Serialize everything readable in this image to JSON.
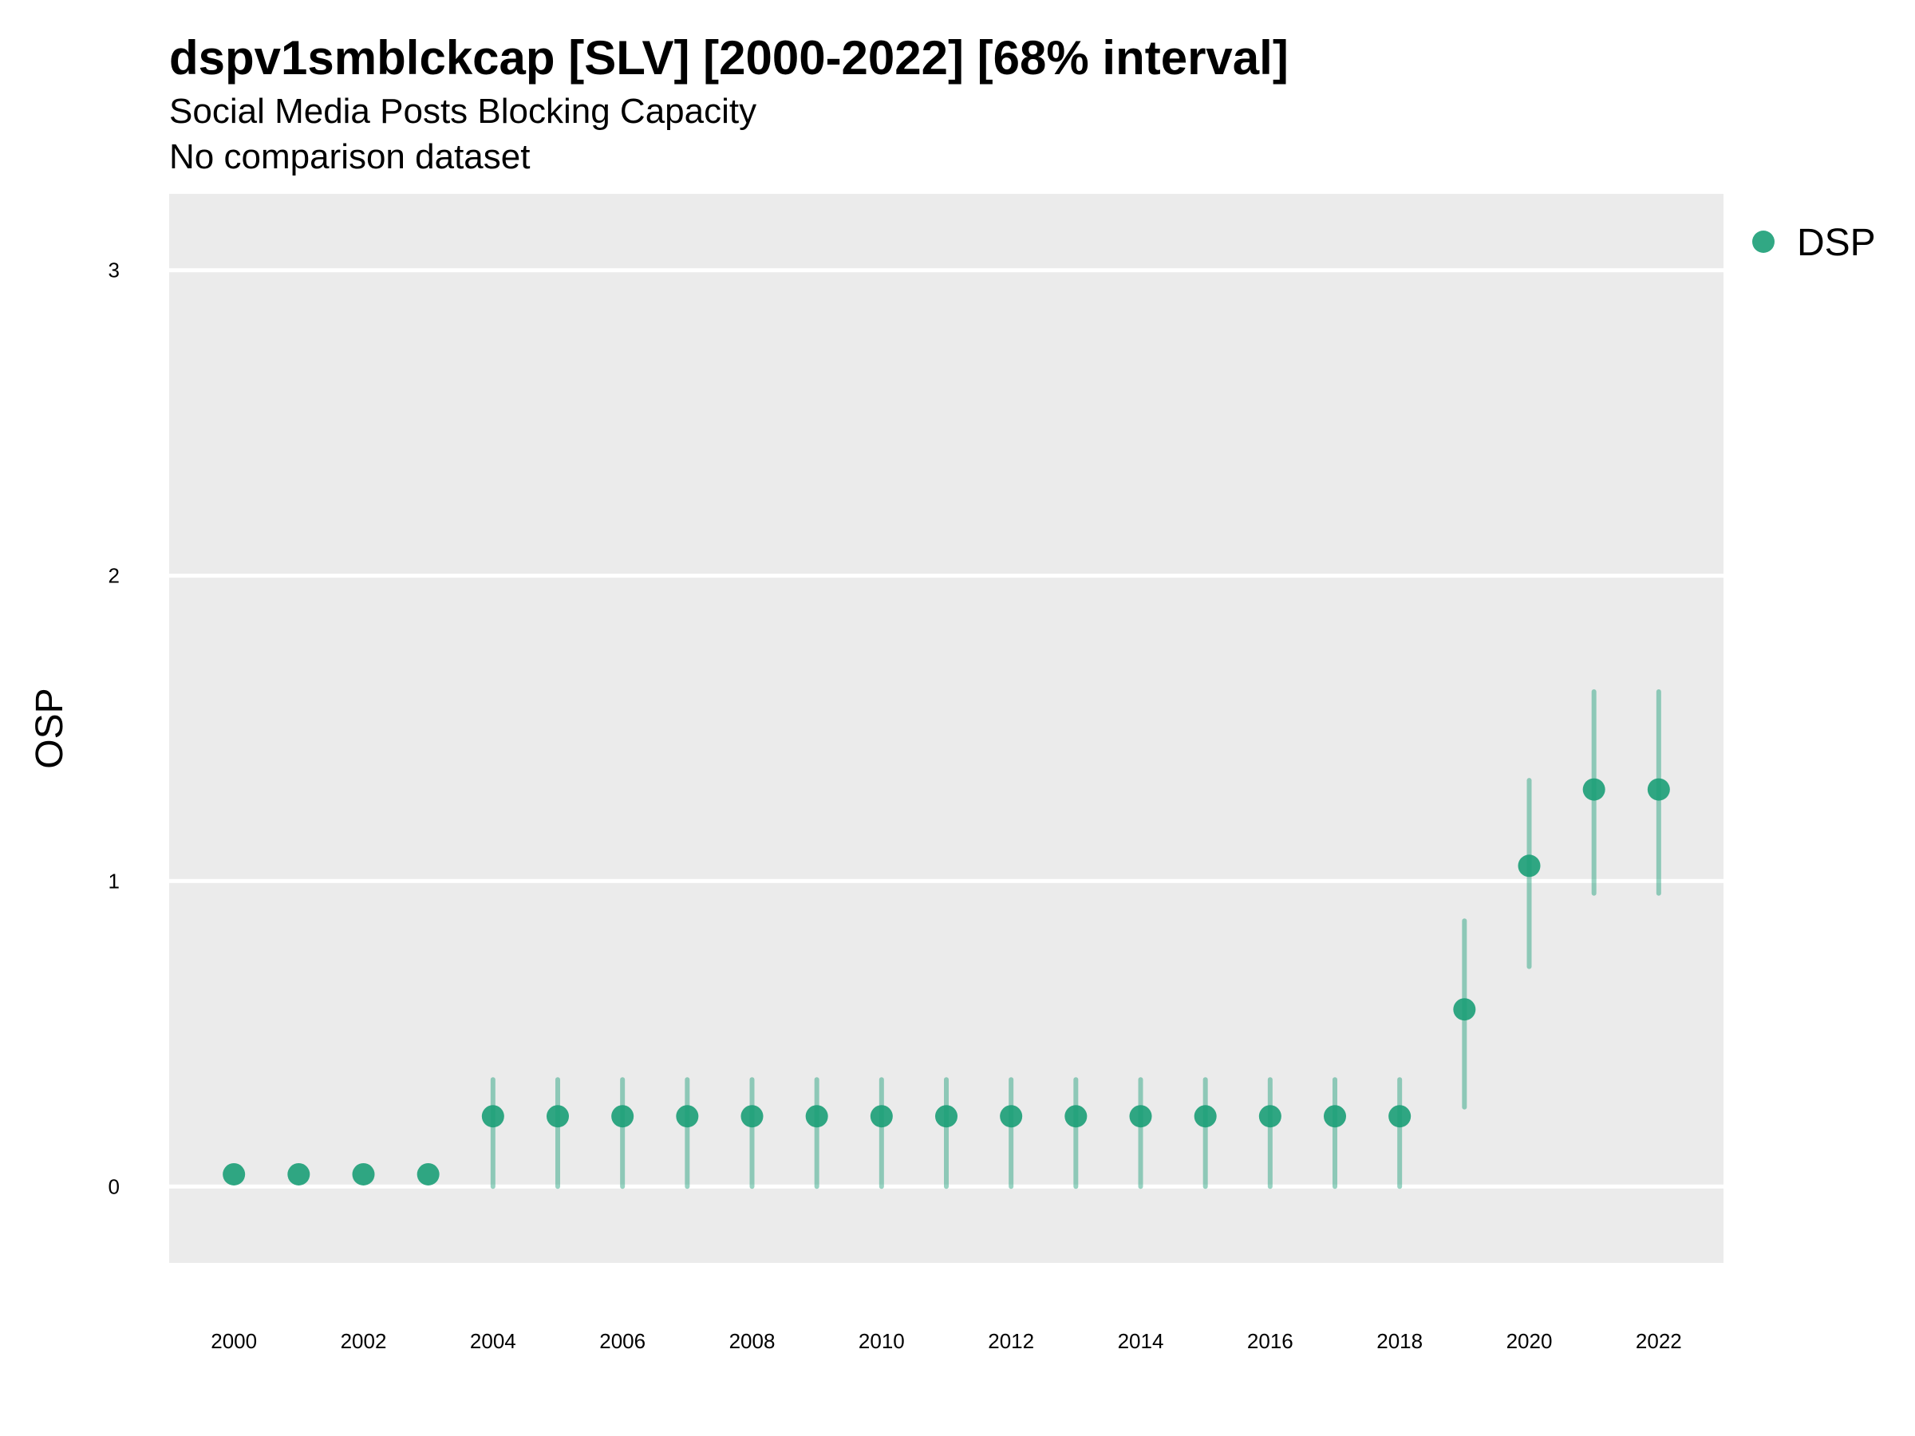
{
  "title": "dspv1smblckcap [SLV] [2000-2022] [68% interval]",
  "subtitle": "Social Media Posts Blocking Capacity",
  "caption": "No comparison dataset",
  "colors": {
    "panel_background": "#EBEBEB",
    "gridline": "#FFFFFF",
    "series": "#1B9E77"
  },
  "chart_data": {
    "type": "scatter",
    "ylabel": "OSP",
    "xlabel": "",
    "ylim": [
      -0.25,
      3.25
    ],
    "xlim": [
      1999,
      2023
    ],
    "yticks": [
      0,
      1,
      2,
      3
    ],
    "xticks": [
      2000,
      2002,
      2004,
      2006,
      2008,
      2010,
      2012,
      2014,
      2016,
      2018,
      2020,
      2022
    ],
    "grid": true,
    "legend_position": "right",
    "series": [
      {
        "name": "DSP",
        "x": [
          2000,
          2001,
          2002,
          2003,
          2004,
          2005,
          2006,
          2007,
          2008,
          2009,
          2010,
          2011,
          2012,
          2013,
          2014,
          2015,
          2016,
          2017,
          2018,
          2019,
          2020,
          2021,
          2022
        ],
        "y": [
          0.04,
          0.04,
          0.04,
          0.04,
          0.23,
          0.23,
          0.23,
          0.23,
          0.23,
          0.23,
          0.23,
          0.23,
          0.23,
          0.23,
          0.23,
          0.23,
          0.23,
          0.23,
          0.23,
          0.58,
          1.05,
          1.3,
          1.3
        ],
        "lower": [
          0.04,
          0.04,
          0.04,
          0.04,
          0.0,
          0.0,
          0.0,
          0.0,
          0.0,
          0.0,
          0.0,
          0.0,
          0.0,
          0.0,
          0.0,
          0.0,
          0.0,
          0.0,
          0.0,
          0.26,
          0.72,
          0.96,
          0.96
        ],
        "upper": [
          0.04,
          0.04,
          0.04,
          0.04,
          0.35,
          0.35,
          0.35,
          0.35,
          0.35,
          0.35,
          0.35,
          0.35,
          0.35,
          0.35,
          0.35,
          0.35,
          0.35,
          0.35,
          0.35,
          0.87,
          1.33,
          1.62,
          1.62
        ]
      }
    ]
  }
}
